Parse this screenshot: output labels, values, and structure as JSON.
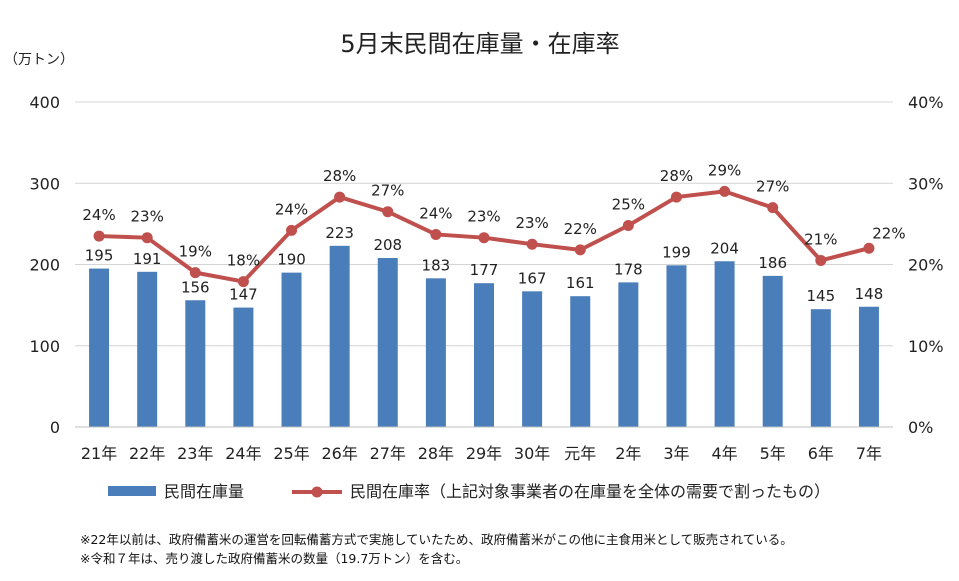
{
  "chart_data": {
    "type": "bar",
    "title": "5月末民間在庫量・在庫率",
    "y_left_unit": "（万トン）",
    "categories": [
      "21年",
      "22年",
      "23年",
      "24年",
      "25年",
      "26年",
      "27年",
      "28年",
      "29年",
      "30年",
      "元年",
      "2年",
      "3年",
      "4年",
      "5年",
      "6年",
      "7年"
    ],
    "ylim_left": [
      0,
      400
    ],
    "ylim_right": [
      0,
      40
    ],
    "yticks_left": [
      "0",
      "100",
      "200",
      "300",
      "400"
    ],
    "yticks_right": [
      "0%",
      "10%",
      "20%",
      "30%",
      "40%"
    ],
    "grid": true,
    "legend_position": "bottom",
    "series": [
      {
        "name": "民間在庫量",
        "type": "bar",
        "axis": "left",
        "color": "#4a7ebb",
        "values": [
          195,
          191,
          156,
          147,
          190,
          223,
          208,
          183,
          177,
          167,
          161,
          178,
          199,
          204,
          186,
          145,
          148
        ],
        "labels": [
          "195",
          "191",
          "156",
          "147",
          "190",
          "223",
          "208",
          "183",
          "177",
          "167",
          "161",
          "178",
          "199",
          "204",
          "186",
          "145",
          "148"
        ]
      },
      {
        "name": "民間在庫率（上記対象事業者の在庫量を全体の需要で割ったもの）",
        "type": "line",
        "axis": "right",
        "color": "#c0504d",
        "values": [
          23.5,
          23.3,
          19.0,
          17.9,
          24.2,
          28.3,
          26.5,
          23.7,
          23.3,
          22.5,
          21.8,
          24.8,
          28.3,
          29.0,
          27.0,
          20.5,
          22.0
        ],
        "labels": [
          "24%",
          "23%",
          "19%",
          "18%",
          "24%",
          "28%",
          "27%",
          "24%",
          "23%",
          "23%",
          "22%",
          "25%",
          "28%",
          "29%",
          "27%",
          "21%",
          "22%"
        ]
      }
    ]
  },
  "notes": [
    "※22年以前は、政府備蓄米の運営を回転備蓄方式で実施していたため、政府備蓄米がこの他に主食用米として販売されている。",
    "※令和７年は、売り渡した政府備蓄米の数量（19.7万トン）を含む。"
  ]
}
